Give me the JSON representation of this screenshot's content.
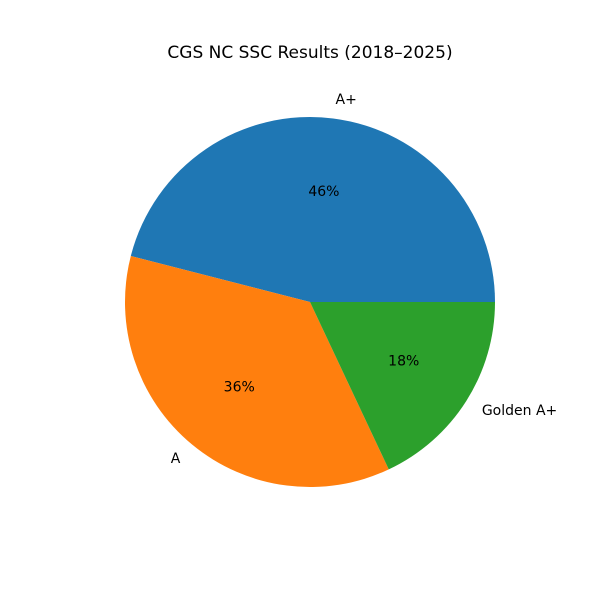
{
  "chart_data": {
    "type": "pie",
    "title": "CGS NC SSC Results (2018–2025)",
    "categories": [
      "A+",
      "A",
      "Golden A+"
    ],
    "values": [
      46,
      36,
      18
    ],
    "value_labels": [
      "46%",
      "36%",
      "18%"
    ],
    "colors": [
      "#1f77b4",
      "#ff7f0e",
      "#2ca02c"
    ]
  }
}
